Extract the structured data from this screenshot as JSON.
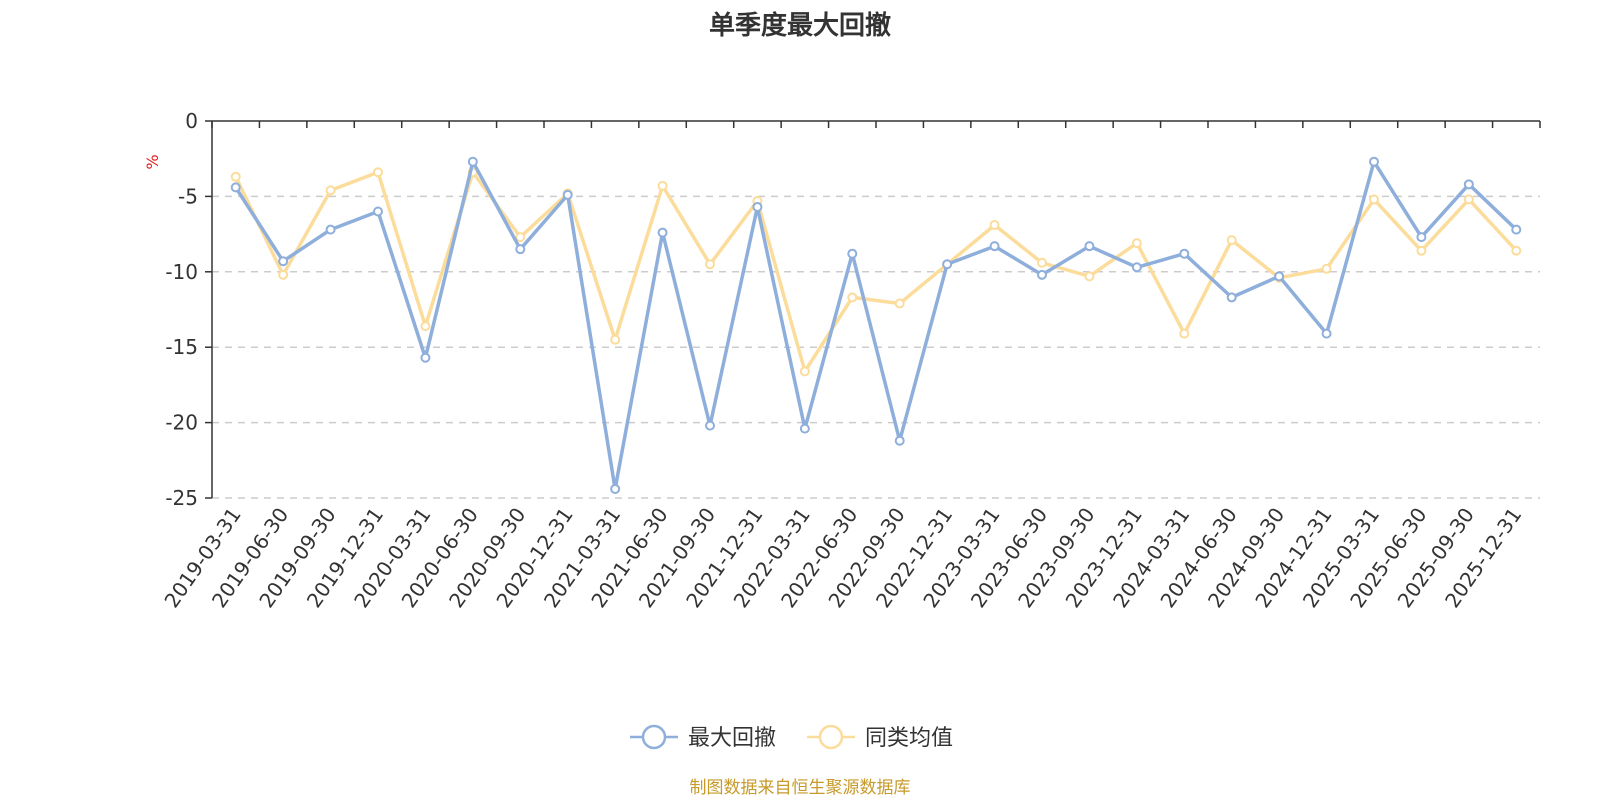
{
  "chart_data": {
    "type": "line",
    "title": "单季度最大回撤",
    "ylabel": "%",
    "ylim": [
      -25,
      0
    ],
    "yticks": [
      0,
      -5,
      -10,
      -15,
      -20,
      -25
    ],
    "grid": true,
    "legend_position": "bottom-center",
    "categories": [
      "2019-03-31",
      "2019-06-30",
      "2019-09-30",
      "2019-12-31",
      "2020-03-31",
      "2020-06-30",
      "2020-09-30",
      "2020-12-31",
      "2021-03-31",
      "2021-06-30",
      "2021-09-30",
      "2021-12-31",
      "2022-03-31",
      "2022-06-30",
      "2022-09-30",
      "2022-12-31",
      "2023-03-31",
      "2023-06-30",
      "2023-09-30",
      "2023-12-31",
      "2024-03-31",
      "2024-06-30",
      "2024-09-30",
      "2024-12-31",
      "2025-03-31",
      "2025-06-30",
      "2025-09-30",
      "2025-12-31"
    ],
    "series": [
      {
        "name": "最大回撤",
        "color": "#8eaedb",
        "values": [
          -4.4,
          -9.3,
          -7.2,
          -6.0,
          -15.7,
          -2.7,
          -8.5,
          -4.9,
          -24.4,
          -7.4,
          -20.2,
          -5.7,
          -20.4,
          -8.8,
          -21.2,
          -9.5,
          -8.3,
          -10.2,
          -8.3,
          -9.7,
          -8.8,
          -11.7,
          -10.3,
          -14.1,
          -2.7,
          -7.7,
          -4.2,
          -7.2
        ]
      },
      {
        "name": "同类均值",
        "color": "#fcdc9b",
        "values": [
          -3.7,
          -10.2,
          -4.6,
          -3.4,
          -13.6,
          -3.4,
          -7.7,
          -4.8,
          -14.5,
          -4.3,
          -9.5,
          -5.3,
          -16.6,
          -11.7,
          -12.1,
          -9.5,
          -6.9,
          -9.4,
          -10.3,
          -8.1,
          -14.1,
          -7.9,
          -10.4,
          -9.8,
          -5.2,
          -8.6,
          -5.2,
          -8.6
        ]
      }
    ]
  },
  "source_note": "制图数据来自恒生聚源数据库"
}
